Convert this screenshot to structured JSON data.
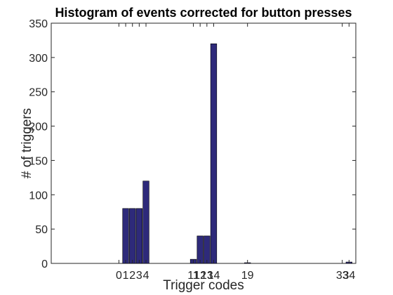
{
  "chart_data": {
    "type": "bar",
    "title": "Histogram of events corrected for button presses",
    "xlabel": "Trigger codes",
    "ylabel": "# of triggers",
    "x_ticks": [
      "0",
      "1",
      "2",
      "3",
      "4",
      "11",
      "12",
      "13",
      "14",
      "19",
      "33",
      "34"
    ],
    "xlim": [
      -10,
      35
    ],
    "ylim": [
      0,
      350
    ],
    "y_ticks": [
      0,
      50,
      100,
      150,
      200,
      250,
      300,
      350
    ],
    "grid": false,
    "bar_color": "#2e2a7a",
    "categories": [
      1,
      2,
      3,
      4,
      11,
      12,
      13,
      14,
      19,
      34
    ],
    "values": [
      80,
      80,
      80,
      120,
      6,
      40,
      40,
      320,
      1,
      2
    ]
  }
}
